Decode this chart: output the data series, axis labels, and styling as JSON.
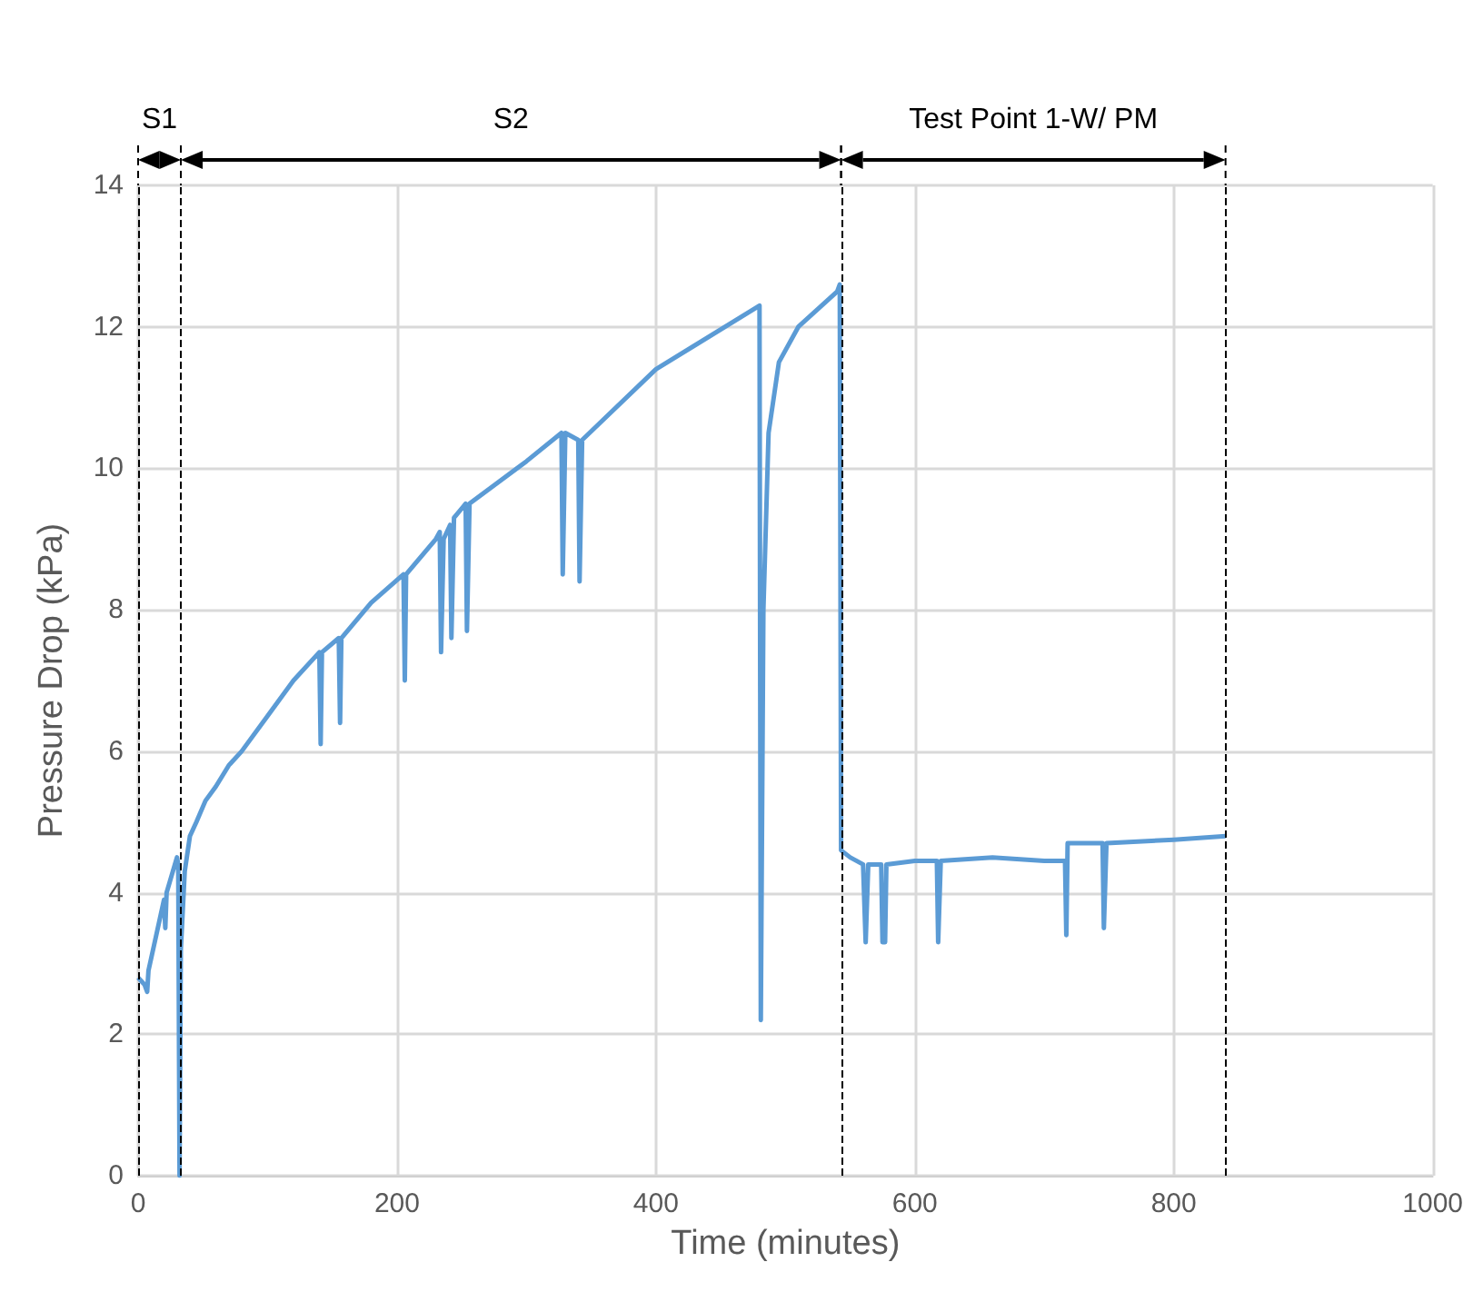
{
  "chart_data": {
    "type": "line",
    "xlabel": "Time (minutes)",
    "ylabel": "Pressure Drop (kPa)",
    "x": [
      0,
      5,
      7,
      8,
      20,
      21,
      22,
      30,
      31,
      32,
      33,
      36,
      40,
      45,
      52,
      60,
      70,
      80,
      100,
      120,
      140,
      141,
      142,
      155,
      156,
      157,
      180,
      205,
      206,
      207,
      230,
      233,
      234,
      236,
      241,
      242,
      244,
      253,
      254,
      256,
      300,
      327,
      328,
      330,
      340,
      341,
      343,
      400,
      480,
      481,
      483,
      487,
      495,
      510,
      540,
      542,
      543,
      550,
      560,
      562,
      564,
      574,
      575,
      577,
      578,
      600,
      617,
      618,
      620,
      660,
      700,
      716,
      717,
      718,
      745,
      746,
      748,
      800,
      840
    ],
    "series": [
      {
        "color": "#5b9bd5",
        "values": [
          2.8,
          2.7,
          2.6,
          2.9,
          3.9,
          3.5,
          4.0,
          4.5,
          4.4,
          0,
          3.2,
          4.3,
          4.8,
          5.0,
          5.3,
          5.5,
          5.8,
          6.0,
          6.5,
          7.0,
          7.4,
          6.1,
          7.4,
          7.6,
          6.4,
          7.6,
          8.1,
          8.5,
          7.0,
          8.5,
          9.0,
          9.1,
          7.4,
          9.0,
          9.2,
          7.6,
          9.3,
          9.5,
          7.7,
          9.5,
          10.1,
          10.5,
          8.5,
          10.5,
          10.4,
          8.4,
          10.4,
          11.4,
          12.3,
          2.2,
          8.0,
          10.5,
          11.5,
          12.0,
          12.5,
          12.6,
          4.6,
          4.5,
          4.4,
          3.3,
          4.4,
          4.4,
          3.3,
          3.3,
          4.4,
          4.45,
          4.45,
          3.3,
          4.45,
          4.5,
          4.45,
          4.45,
          3.4,
          4.7,
          4.7,
          3.5,
          4.7,
          4.75,
          4.8
        ]
      }
    ],
    "xlim": [
      0,
      1000
    ],
    "xticks": [
      0,
      200,
      400,
      600,
      800,
      1000
    ],
    "ylim": [
      0,
      14
    ],
    "yticks": [
      0,
      2,
      4,
      6,
      8,
      10,
      12,
      14
    ],
    "grid": true,
    "marker": "none",
    "line_style": "solid",
    "ref_lines": [
      {
        "axis": "x",
        "value": 0,
        "color": "#000000",
        "line_style": "dashed"
      },
      {
        "axis": "x",
        "value": 33,
        "color": "#000000",
        "line_style": "dashed"
      },
      {
        "axis": "x",
        "value": 543,
        "color": "#000000",
        "line_style": "dashed"
      },
      {
        "axis": "x",
        "value": 840,
        "color": "#000000",
        "line_style": "dashed"
      }
    ],
    "annotations": [
      "S1",
      "S2",
      "Test Point 1-W/ PM"
    ]
  }
}
